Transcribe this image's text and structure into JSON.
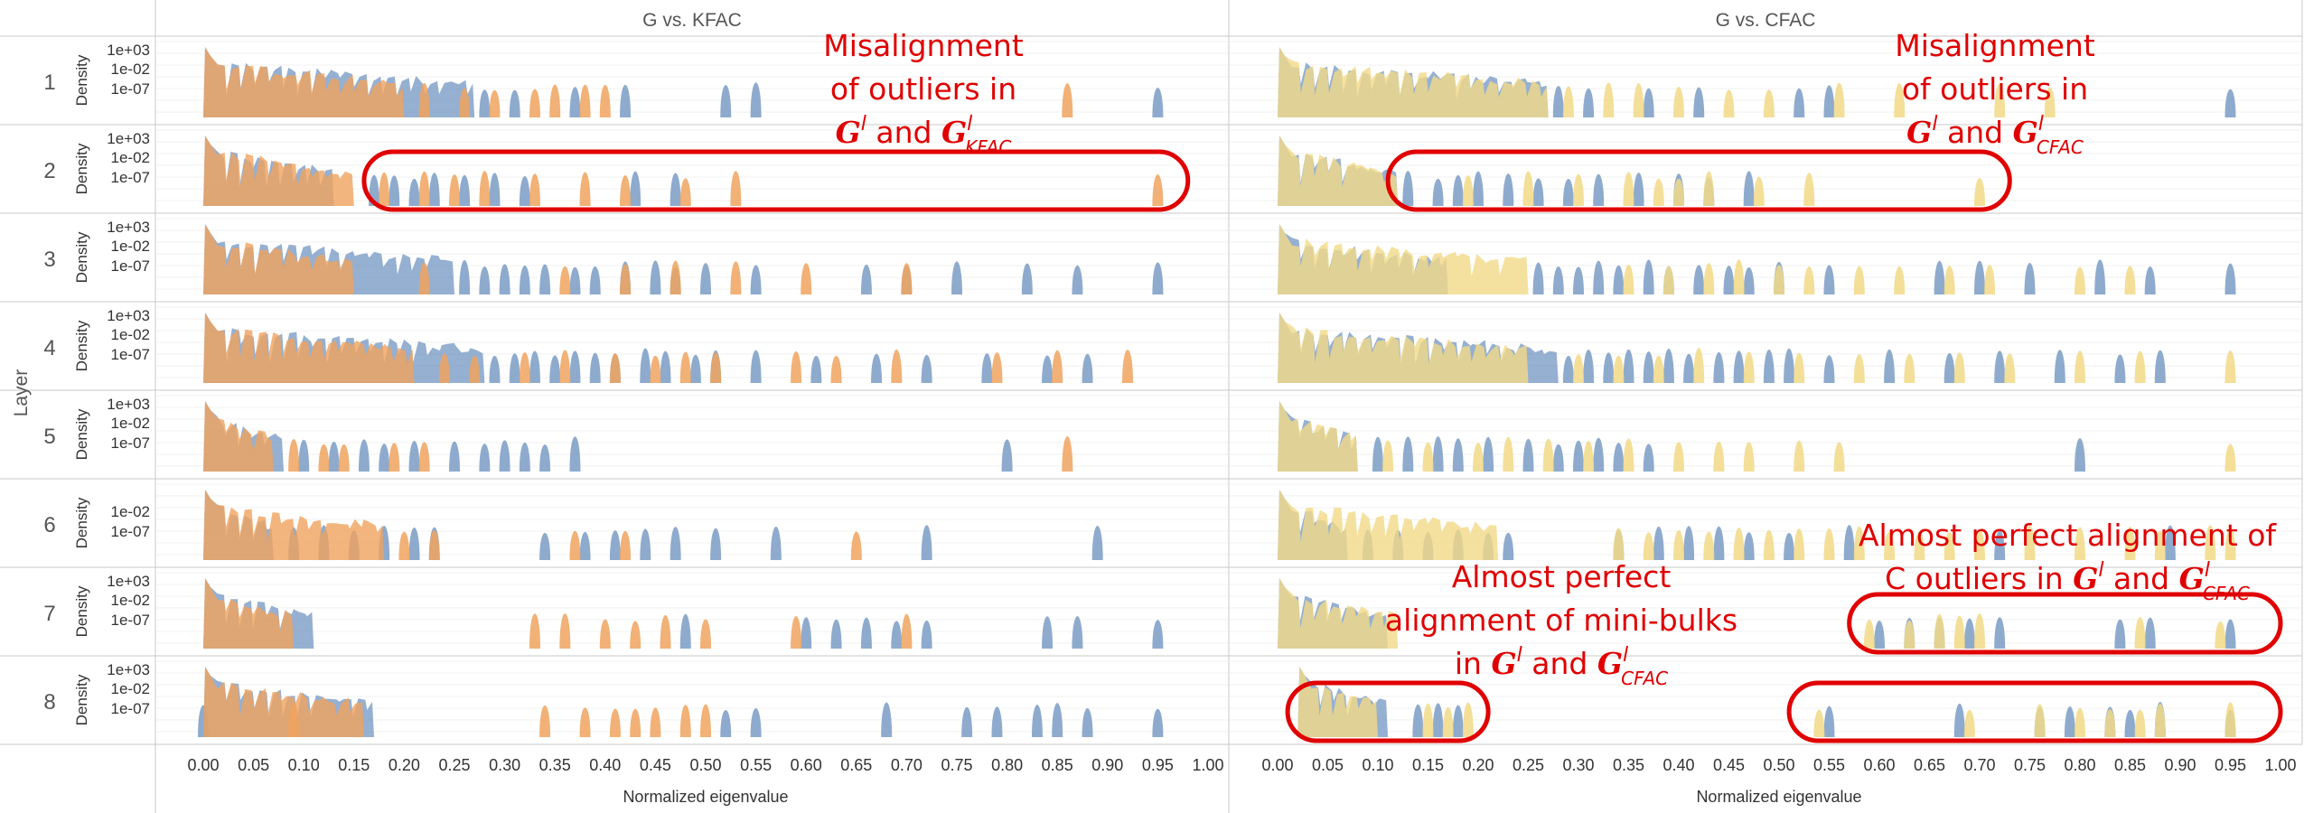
{
  "chart_data": {
    "type": "area",
    "facet_titles": [
      "G vs. KFAC",
      "G vs. CFAC"
    ],
    "row_axis_label": "Layer",
    "rows": [
      "1",
      "2",
      "3",
      "4",
      "5",
      "6",
      "7",
      "8"
    ],
    "density_label": "Density",
    "density_ticks": {
      "default": [
        "1e+03",
        "1e-02",
        "1e-07"
      ],
      "row6": [
        "1e-02",
        "1e-07"
      ]
    },
    "y_scale": "log",
    "xlabel": "Normalized eigenvalue",
    "x_ticks": [
      "0.00",
      "0.05",
      "0.10",
      "0.15",
      "0.20",
      "0.25",
      "0.30",
      "0.35",
      "0.40",
      "0.45",
      "0.50",
      "0.55",
      "0.60",
      "0.65",
      "0.70",
      "0.75",
      "0.80",
      "0.85",
      "0.90",
      "0.95",
      "1.00"
    ],
    "xlim": [
      0,
      1
    ],
    "series_colors": {
      "G": "#7a9cc6",
      "KFAC": "#f0a35e",
      "CFAC": "#f2d987"
    },
    "panels": [
      {
        "title": "G vs. KFAC",
        "layers": [
          {
            "layer": 1,
            "G": {
              "bulk_end": 0.27,
              "outliers": [
                0.28,
                0.31,
                0.37,
                0.42,
                0.52,
                0.55,
                0.95
              ]
            },
            "other": {
              "bulk_end": 0.2,
              "outliers": [
                0.22,
                0.26,
                0.29,
                0.33,
                0.35,
                0.38,
                0.4,
                0.86
              ]
            }
          },
          {
            "layer": 2,
            "G": {
              "bulk_end": 0.13,
              "outliers": [
                0.17,
                0.19,
                0.21,
                0.23,
                0.26,
                0.29,
                0.32,
                0.43,
                0.47
              ]
            },
            "other": {
              "bulk_end": 0.15,
              "outliers": [
                0.18,
                0.22,
                0.25,
                0.28,
                0.33,
                0.38,
                0.42,
                0.48,
                0.53,
                0.95
              ]
            }
          },
          {
            "layer": 3,
            "G": {
              "bulk_end": 0.25,
              "outliers": [
                0.26,
                0.28,
                0.3,
                0.32,
                0.34,
                0.37,
                0.39,
                0.42,
                0.45,
                0.47,
                0.5,
                0.55,
                0.66,
                0.7,
                0.75,
                0.82,
                0.87,
                0.95
              ]
            },
            "other": {
              "bulk_end": 0.15,
              "outliers": [
                0.22,
                0.36,
                0.42,
                0.47,
                0.53,
                0.6,
                0.7
              ]
            }
          },
          {
            "layer": 4,
            "G": {
              "bulk_end": 0.28,
              "outliers": [
                0.29,
                0.31,
                0.33,
                0.35,
                0.37,
                0.39,
                0.41,
                0.44,
                0.46,
                0.49,
                0.51,
                0.55,
                0.61,
                0.67,
                0.72,
                0.78,
                0.84,
                0.88
              ]
            },
            "other": {
              "bulk_end": 0.21,
              "outliers": [
                0.24,
                0.27,
                0.32,
                0.36,
                0.41,
                0.45,
                0.48,
                0.51,
                0.59,
                0.63,
                0.69,
                0.79,
                0.85,
                0.92
              ]
            }
          },
          {
            "layer": 5,
            "G": {
              "bulk_end": 0.08,
              "outliers": [
                0.1,
                0.13,
                0.16,
                0.18,
                0.21,
                0.25,
                0.28,
                0.3,
                0.32,
                0.34,
                0.37,
                0.8
              ]
            },
            "other": {
              "bulk_end": 0.07,
              "outliers": [
                0.09,
                0.12,
                0.14,
                0.19,
                0.22,
                0.86
              ]
            }
          },
          {
            "layer": 6,
            "G": {
              "bulk_end": 0.07,
              "outliers": [
                0.09,
                0.12,
                0.15,
                0.18,
                0.21,
                0.23,
                0.34,
                0.38,
                0.41,
                0.44,
                0.47,
                0.51,
                0.57,
                0.72,
                0.89
              ]
            },
            "other": {
              "bulk_end": 0.18,
              "outliers": [
                0.2,
                0.23,
                0.37,
                0.42,
                0.65
              ]
            }
          },
          {
            "layer": 7,
            "G": {
              "bulk_end": 0.11,
              "outliers": [
                0.48,
                0.6,
                0.63,
                0.66,
                0.69,
                0.72,
                0.84,
                0.87,
                0.95
              ]
            },
            "other": {
              "bulk_end": 0.09,
              "outliers": [
                0.33,
                0.36,
                0.4,
                0.43,
                0.46,
                0.5,
                0.59,
                0.7
              ]
            }
          },
          {
            "layer": 8,
            "G": {
              "bulk_end": 0.17,
              "outliers": [
                0.0,
                0.52,
                0.55,
                0.68,
                0.76,
                0.79,
                0.83,
                0.85,
                0.88,
                0.95
              ]
            },
            "other": {
              "bulk_end": 0.16,
              "outliers": [
                0.09,
                0.34,
                0.38,
                0.41,
                0.43,
                0.45,
                0.48,
                0.5
              ]
            }
          }
        ]
      },
      {
        "title": "G vs. CFAC",
        "layers": [
          {
            "layer": 1,
            "G": {
              "bulk_end": 0.27,
              "outliers": [
                0.28,
                0.31,
                0.37,
                0.42,
                0.52,
                0.55,
                0.95
              ]
            },
            "other": {
              "bulk_end": 0.27,
              "outliers": [
                0.29,
                0.33,
                0.36,
                0.4,
                0.45,
                0.49,
                0.56,
                0.62,
                0.72,
                0.77
              ]
            }
          },
          {
            "layer": 2,
            "G": {
              "bulk_end": 0.12,
              "outliers": [
                0.13,
                0.16,
                0.18,
                0.2,
                0.23,
                0.26,
                0.29,
                0.32,
                0.36,
                0.4,
                0.43,
                0.47
              ]
            },
            "other": {
              "bulk_end": 0.12,
              "outliers": [
                0.19,
                0.25,
                0.3,
                0.35,
                0.38,
                0.4,
                0.43,
                0.48,
                0.53,
                0.7
              ]
            }
          },
          {
            "layer": 3,
            "G": {
              "bulk_end": 0.17,
              "outliers": [
                0.26,
                0.28,
                0.3,
                0.32,
                0.34,
                0.37,
                0.39,
                0.42,
                0.45,
                0.47,
                0.5,
                0.55,
                0.66,
                0.7,
                0.75,
                0.82,
                0.87,
                0.95
              ]
            },
            "other": {
              "bulk_end": 0.25,
              "outliers": [
                0.35,
                0.39,
                0.43,
                0.46,
                0.5,
                0.53,
                0.58,
                0.62,
                0.67,
                0.71,
                0.8,
                0.85
              ]
            }
          },
          {
            "layer": 4,
            "G": {
              "bulk_end": 0.28,
              "outliers": [
                0.29,
                0.31,
                0.33,
                0.35,
                0.37,
                0.39,
                0.41,
                0.44,
                0.46,
                0.49,
                0.51,
                0.55,
                0.61,
                0.67,
                0.72,
                0.78,
                0.84,
                0.88
              ]
            },
            "other": {
              "bulk_end": 0.25,
              "outliers": [
                0.3,
                0.34,
                0.38,
                0.42,
                0.47,
                0.52,
                0.58,
                0.63,
                0.68,
                0.73,
                0.8,
                0.86,
                0.95
              ]
            }
          },
          {
            "layer": 5,
            "G": {
              "bulk_end": 0.08,
              "outliers": [
                0.1,
                0.13,
                0.16,
                0.18,
                0.21,
                0.25,
                0.28,
                0.3,
                0.32,
                0.34,
                0.37,
                0.8
              ]
            },
            "other": {
              "bulk_end": 0.08,
              "outliers": [
                0.11,
                0.15,
                0.2,
                0.23,
                0.27,
                0.31,
                0.35,
                0.4,
                0.44,
                0.47,
                0.52,
                0.56,
                0.95
              ]
            }
          },
          {
            "layer": 6,
            "G": {
              "bulk_end": 0.07,
              "outliers": [
                0.09,
                0.12,
                0.15,
                0.18,
                0.21,
                0.23,
                0.34,
                0.38,
                0.41,
                0.44,
                0.47,
                0.51,
                0.57,
                0.72,
                0.89
              ]
            },
            "other": {
              "bulk_end": 0.22,
              "outliers": [
                0.34,
                0.37,
                0.4,
                0.43,
                0.46,
                0.49,
                0.52,
                0.55,
                0.58,
                0.61,
                0.64,
                0.67,
                0.7,
                0.75,
                0.8,
                0.85,
                0.88,
                0.93,
                0.95
              ]
            }
          },
          {
            "layer": 7,
            "G": {
              "bulk_end": 0.11,
              "outliers": [
                0.6,
                0.63,
                0.66,
                0.69,
                0.72,
                0.84,
                0.87,
                0.95
              ]
            },
            "other": {
              "bulk_end": 0.12,
              "outliers": [
                0.59,
                0.63,
                0.66,
                0.68,
                0.7,
                0.86,
                0.94
              ]
            }
          },
          {
            "layer": 8,
            "G": {
              "bulk_end": 0.11,
              "outliers": [
                0.14,
                0.16,
                0.18,
                0.55,
                0.68,
                0.76,
                0.79,
                0.83,
                0.85,
                0.88,
                0.95
              ]
            },
            "other": {
              "bulk_end": 0.1,
              "outliers": [
                0.15,
                0.17,
                0.19,
                0.54,
                0.69,
                0.76,
                0.8,
                0.83,
                0.86,
                0.88,
                0.95
              ]
            }
          }
        ]
      }
    ],
    "annotations": [
      {
        "panel": 0,
        "lines": [
          "Misalignment",
          "of outliers in",
          "Gˡ and Gˡ_KFAC"
        ],
        "highlight": {
          "layer": 2,
          "x_range": [
            0.16,
            0.98
          ]
        }
      },
      {
        "panel": 1,
        "lines": [
          "Misalignment",
          "of outliers in",
          "Gˡ and Gˡ_CFAC"
        ],
        "highlight": {
          "layer": 2,
          "x_range": [
            0.11,
            0.73
          ]
        }
      },
      {
        "panel": 1,
        "lines": [
          "Almost perfect",
          "alignment of mini-bulks",
          "in Gˡ and Gˡ_CFAC"
        ],
        "highlight": {
          "layer": 8,
          "x_range": [
            0.01,
            0.21
          ]
        }
      },
      {
        "panel": 1,
        "lines": [
          "Almost perfect alignment of",
          "C outliers in Gˡ and Gˡ_CFAC"
        ],
        "highlight": {
          "layer": 7,
          "x_range": [
            0.57,
            1.0
          ]
        }
      },
      {
        "panel": 1,
        "lines": [],
        "highlight": {
          "layer": 8,
          "x_range": [
            0.51,
            1.0
          ]
        }
      }
    ]
  }
}
